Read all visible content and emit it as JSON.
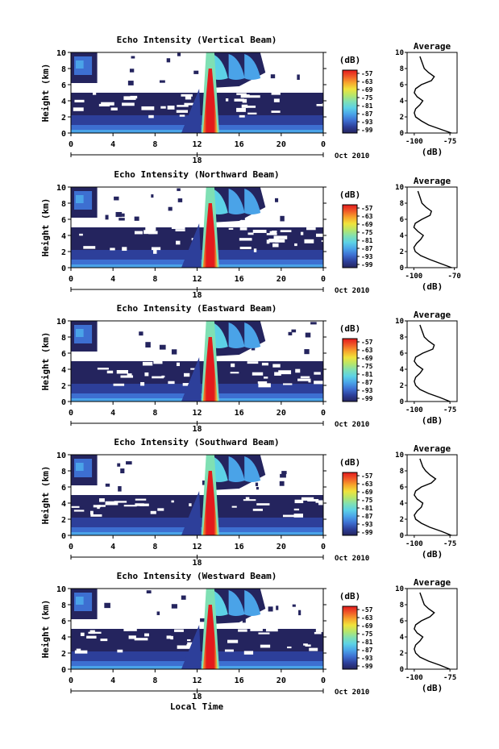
{
  "colors": {
    "colormap": [
      "#24245e",
      "#2d3f9a",
      "#3d6fd1",
      "#4aa3e8",
      "#5cd1e6",
      "#7fe0b4",
      "#b6e66b",
      "#f0e33c",
      "#f7a52c",
      "#f05a28",
      "#e31a1c"
    ],
    "axis": "#000000"
  },
  "chart_data": [
    {
      "type": "heatmap",
      "title": "Echo Intensity (Vertical Beam)",
      "ylabel": "Height (km)",
      "xlim": [
        0,
        24
      ],
      "ylim": [
        0,
        10
      ],
      "x_ticks": [
        "0",
        "4",
        "8",
        "12",
        "16",
        "20",
        "0"
      ],
      "y_ticks": [
        "0",
        "2",
        "4",
        "6",
        "8",
        "10"
      ],
      "date_axis": {
        "tick": "18",
        "label": "Oct 2010"
      },
      "colorbar": {
        "label": "(dB)",
        "ticks": [
          "-57",
          "-63",
          "-69",
          "-75",
          "-81",
          "-87",
          "-93",
          "-99"
        ]
      },
      "average_profile": {
        "title": "Average",
        "xlabel": "(dB)",
        "x_ticks": [
          "-100",
          "-75"
        ],
        "xlim": [
          -105,
          -70
        ],
        "heights_km": [
          0.0,
          0.5,
          1.0,
          1.5,
          2.0,
          2.5,
          3.0,
          3.5,
          4.0,
          4.5,
          5.0,
          5.5,
          6.0,
          6.5,
          7.0,
          7.5,
          8.0,
          8.5,
          9.0,
          9.5
        ],
        "values_db": [
          -74,
          -82,
          -90,
          -95,
          -99,
          -100,
          -99,
          -96,
          -94,
          -98,
          -100,
          -99,
          -95,
          -88,
          -86,
          -90,
          -93,
          -94,
          -95,
          -96
        ]
      }
    },
    {
      "type": "heatmap",
      "title": "Echo Intensity (Northward Beam)",
      "ylabel": "Height (km)",
      "xlim": [
        0,
        24
      ],
      "ylim": [
        0,
        10
      ],
      "x_ticks": [
        "0",
        "4",
        "8",
        "12",
        "16",
        "20",
        "0"
      ],
      "y_ticks": [
        "0",
        "2",
        "4",
        "6",
        "8",
        "10"
      ],
      "date_axis": {
        "tick": "18",
        "label": "Oct 2010"
      },
      "colorbar": {
        "label": "(dB)",
        "ticks": [
          "-57",
          "-63",
          "-69",
          "-75",
          "-81",
          "-87",
          "-93",
          "-99"
        ]
      },
      "average_profile": {
        "title": "Average",
        "xlabel": "(dB)",
        "x_ticks": [
          "-100",
          "-70"
        ],
        "xlim": [
          -105,
          -68
        ],
        "heights_km": [
          0.0,
          0.5,
          1.0,
          1.5,
          2.0,
          2.5,
          3.0,
          3.5,
          4.0,
          4.5,
          5.0,
          5.5,
          6.0,
          6.5,
          7.0,
          7.5,
          8.0,
          8.5,
          9.0,
          9.5
        ],
        "values_db": [
          -72,
          -80,
          -88,
          -95,
          -99,
          -100,
          -98,
          -95,
          -93,
          -97,
          -100,
          -99,
          -94,
          -88,
          -87,
          -91,
          -94,
          -95,
          -96,
          -97
        ]
      }
    },
    {
      "type": "heatmap",
      "title": "Echo Intensity (Eastward Beam)",
      "ylabel": "Height (km)",
      "xlim": [
        0,
        24
      ],
      "ylim": [
        0,
        10
      ],
      "x_ticks": [
        "0",
        "4",
        "8",
        "12",
        "16",
        "20",
        "0"
      ],
      "y_ticks": [
        "0",
        "2",
        "4",
        "6",
        "8",
        "10"
      ],
      "date_axis": {
        "tick": "18",
        "label": "Oct 2010"
      },
      "colorbar": {
        "label": "(dB)",
        "ticks": [
          "-57",
          "-63",
          "-69",
          "-75",
          "-81",
          "-87",
          "-93",
          "-99"
        ]
      },
      "average_profile": {
        "title": "Average",
        "xlabel": "(dB)",
        "x_ticks": [
          "-100",
          "-75"
        ],
        "xlim": [
          -105,
          -70
        ],
        "heights_km": [
          0.0,
          0.5,
          1.0,
          1.5,
          2.0,
          2.5,
          3.0,
          3.5,
          4.0,
          4.5,
          5.0,
          5.5,
          6.0,
          6.5,
          7.0,
          7.5,
          8.0,
          8.5,
          9.0,
          9.5
        ],
        "values_db": [
          -75,
          -82,
          -90,
          -96,
          -99,
          -100,
          -99,
          -96,
          -94,
          -98,
          -100,
          -99,
          -94,
          -87,
          -86,
          -90,
          -93,
          -94,
          -95,
          -96
        ]
      }
    },
    {
      "type": "heatmap",
      "title": "Echo Intensity (Southward Beam)",
      "ylabel": "Height (km)",
      "xlim": [
        0,
        24
      ],
      "ylim": [
        0,
        10
      ],
      "x_ticks": [
        "0",
        "4",
        "8",
        "12",
        "16",
        "20",
        "0"
      ],
      "y_ticks": [
        "0",
        "2",
        "4",
        "6",
        "8",
        "10"
      ],
      "date_axis": {
        "tick": "18",
        "label": "Oct 2010"
      },
      "colorbar": {
        "label": "(dB)",
        "ticks": [
          "-57",
          "-63",
          "-69",
          "-75",
          "-81",
          "-87",
          "-93",
          "-99"
        ]
      },
      "average_profile": {
        "title": "Average",
        "xlabel": "(dB)",
        "x_ticks": [
          "-100",
          "-75"
        ],
        "xlim": [
          -105,
          -70
        ],
        "heights_km": [
          0.0,
          0.5,
          1.0,
          1.5,
          2.0,
          2.5,
          3.0,
          3.5,
          4.0,
          4.5,
          5.0,
          5.5,
          6.0,
          6.5,
          7.0,
          7.5,
          8.0,
          8.5,
          9.0,
          9.5
        ],
        "values_db": [
          -74,
          -81,
          -89,
          -95,
          -99,
          -100,
          -98,
          -95,
          -94,
          -98,
          -100,
          -99,
          -95,
          -88,
          -85,
          -89,
          -92,
          -94,
          -95,
          -96
        ]
      }
    },
    {
      "type": "heatmap",
      "title": "Echo Intensity (Westward Beam)",
      "ylabel": "Height (km)",
      "xlabel": "Local Time",
      "xlim": [
        0,
        24
      ],
      "ylim": [
        0,
        10
      ],
      "x_ticks": [
        "0",
        "4",
        "8",
        "12",
        "16",
        "20",
        "0"
      ],
      "y_ticks": [
        "0",
        "2",
        "4",
        "6",
        "8",
        "10"
      ],
      "date_axis": {
        "tick": "18",
        "label": "Oct 2010"
      },
      "colorbar": {
        "label": "(dB)",
        "ticks": [
          "-57",
          "-63",
          "-69",
          "-75",
          "-81",
          "-87",
          "-93",
          "-99"
        ]
      },
      "average_profile": {
        "title": "Average",
        "xlabel": "(dB)",
        "x_ticks": [
          "-100",
          "-75"
        ],
        "xlim": [
          -105,
          -70
        ],
        "heights_km": [
          0.0,
          0.5,
          1.0,
          1.5,
          2.0,
          2.5,
          3.0,
          3.5,
          4.0,
          4.5,
          5.0,
          5.5,
          6.0,
          6.5,
          7.0,
          7.5,
          8.0,
          8.5,
          9.0,
          9.5
        ],
        "values_db": [
          -75,
          -82,
          -90,
          -96,
          -99,
          -100,
          -99,
          -96,
          -94,
          -98,
          -100,
          -99,
          -95,
          -89,
          -86,
          -90,
          -93,
          -94,
          -95,
          -96
        ]
      }
    }
  ]
}
